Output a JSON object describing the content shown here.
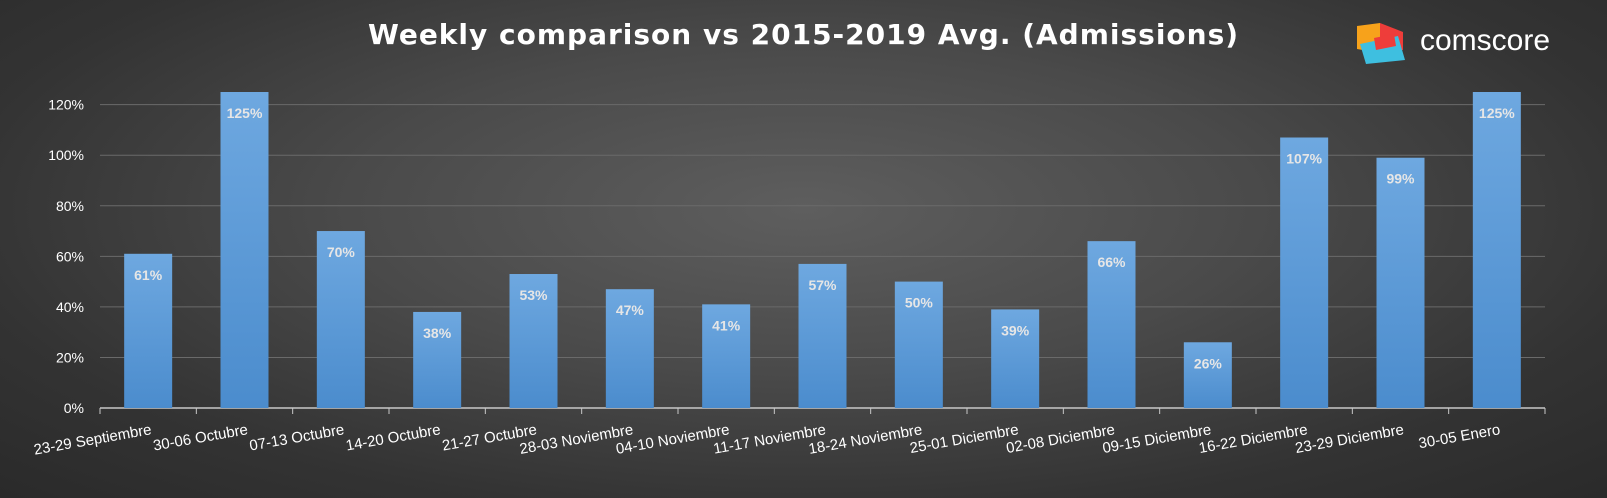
{
  "brand": {
    "name": "comscore"
  },
  "chart_data": {
    "type": "bar",
    "title": "Weekly comparison vs 2015-2019 Avg. (Admissions)",
    "categories": [
      "23-29 Septiembre",
      "30-06 Octubre",
      "07-13 Octubre",
      "14-20 Octubre",
      "21-27 Octubre",
      "28-03 Noviembre",
      "04-10 Noviembre",
      "11-17 Noviembre",
      "18-24 Noviembre",
      "25-01 Diciembre",
      "02-08 Diciembre",
      "09-15 Diciembre",
      "16-22 Diciembre",
      "23-29 Diciembre",
      "30-05 Enero"
    ],
    "values": [
      61,
      125,
      70,
      38,
      53,
      47,
      41,
      57,
      50,
      39,
      66,
      26,
      107,
      99,
      125
    ],
    "data_labels": [
      "61%",
      "125%",
      "70%",
      "38%",
      "53%",
      "47%",
      "41%",
      "57%",
      "50%",
      "39%",
      "66%",
      "26%",
      "107%",
      "99%",
      "125%"
    ],
    "y_ticks": [
      0,
      20,
      40,
      60,
      80,
      100,
      120
    ],
    "y_tick_labels": [
      "0%",
      "20%",
      "40%",
      "60%",
      "80%",
      "100%",
      "120%"
    ],
    "ylim": [
      0,
      125
    ],
    "grid": true,
    "legend": "none",
    "bar_color": "#5b9bd5"
  }
}
